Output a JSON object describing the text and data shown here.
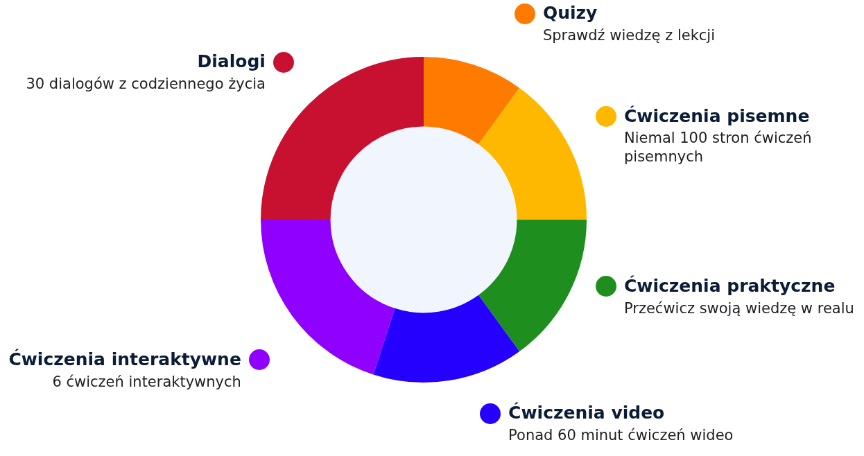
{
  "chart_data": {
    "type": "donut",
    "categories": [
      "Quizy",
      "Ćwiczenia pisemne",
      "Ćwiczenia praktyczne",
      "Ćwiczenia video",
      "Ćwiczenia interaktywne",
      "Dialogi"
    ],
    "values": [
      10,
      15,
      15,
      15,
      20,
      25
    ],
    "colors": [
      "#ff7b00",
      "#ffb800",
      "#1e8f1e",
      "#2500ff",
      "#8f00ff",
      "#c81130"
    ],
    "legend": "right",
    "annotations": [
      "Sprawdź wiedzę z lekcji",
      "Niemal 100 stron ćwiczeń pisemnych",
      "Przećwicz swoją wiedzę w realu",
      "Ponad 60 minut ćwiczeń wideo",
      "6 ćwiczeń interaktywnych",
      "30 dialogów z codziennego życia"
    ]
  }
}
